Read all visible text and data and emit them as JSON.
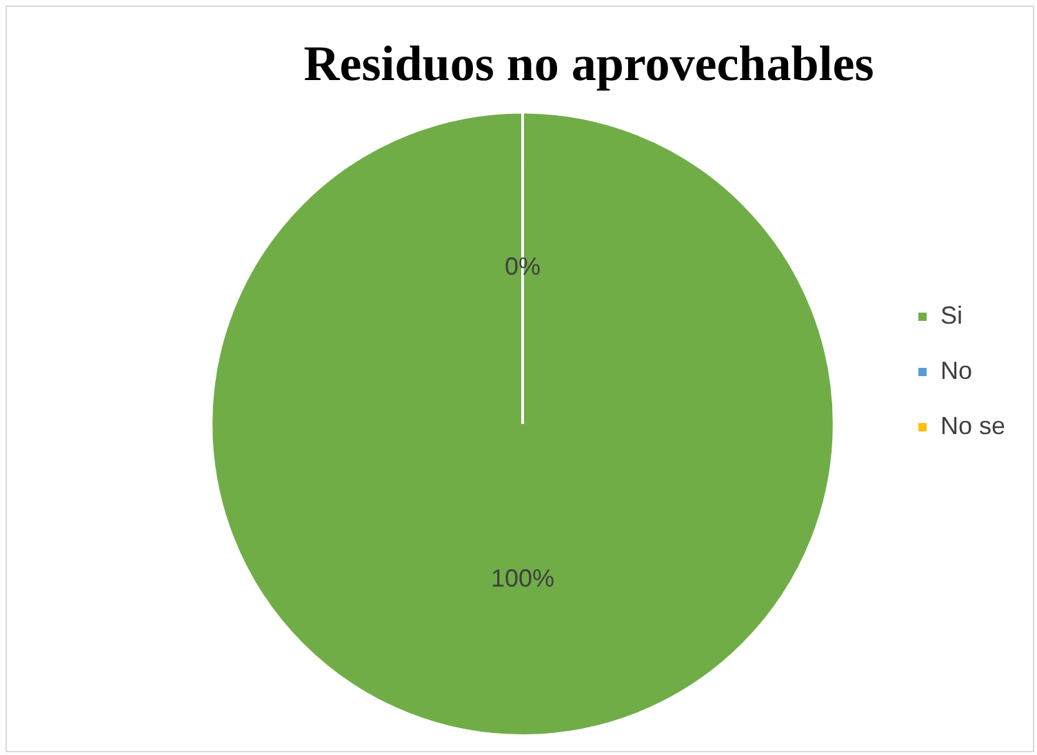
{
  "chart_data": {
    "type": "pie",
    "title": "Residuos no aprovechables",
    "categories": [
      "Si",
      "No",
      "No se"
    ],
    "values": [
      100,
      0,
      0
    ],
    "colors": [
      "#70ad47",
      "#5b9bd5",
      "#ffc000"
    ],
    "value_labels": [
      "100%",
      "0%",
      null
    ],
    "legend": "right"
  }
}
